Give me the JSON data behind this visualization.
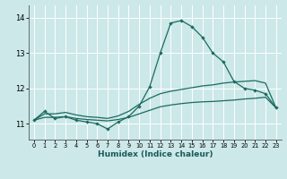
{
  "title": "",
  "xlabel": "Humidex (Indice chaleur)",
  "xlim": [
    -0.5,
    23.5
  ],
  "ylim": [
    10.55,
    14.35
  ],
  "yticks": [
    11,
    12,
    13,
    14
  ],
  "xticks": [
    0,
    1,
    2,
    3,
    4,
    5,
    6,
    7,
    8,
    9,
    10,
    11,
    12,
    13,
    14,
    15,
    16,
    17,
    18,
    19,
    20,
    21,
    22,
    23
  ],
  "bg_color": "#cce8e8",
  "grid_color": "#ffffff",
  "line_color": "#1a6b60",
  "line1_x": [
    0,
    1,
    2,
    3,
    4,
    5,
    6,
    7,
    8,
    9,
    10,
    11,
    12,
    13,
    14,
    15,
    16,
    17,
    18,
    19,
    20,
    21,
    22,
    23
  ],
  "line1_y": [
    11.1,
    11.35,
    11.15,
    11.2,
    11.1,
    11.05,
    11.0,
    10.85,
    11.05,
    11.2,
    11.5,
    12.05,
    13.0,
    13.85,
    13.92,
    13.75,
    13.45,
    13.0,
    12.75,
    12.2,
    12.0,
    11.95,
    11.85,
    11.45
  ],
  "line2_x": [
    0,
    1,
    2,
    3,
    4,
    5,
    6,
    7,
    8,
    9,
    10,
    11,
    12,
    13,
    14,
    15,
    16,
    17,
    18,
    19,
    20,
    21,
    22,
    23
  ],
  "line2_y": [
    11.1,
    11.18,
    11.18,
    11.2,
    11.15,
    11.12,
    11.1,
    11.08,
    11.12,
    11.18,
    11.28,
    11.38,
    11.48,
    11.53,
    11.57,
    11.6,
    11.62,
    11.63,
    11.65,
    11.67,
    11.7,
    11.72,
    11.75,
    11.45
  ],
  "line3_x": [
    0,
    1,
    2,
    3,
    4,
    5,
    6,
    7,
    8,
    9,
    10,
    11,
    12,
    13,
    14,
    15,
    16,
    17,
    18,
    19,
    20,
    21,
    22,
    23
  ],
  "line3_y": [
    11.1,
    11.28,
    11.28,
    11.32,
    11.25,
    11.2,
    11.18,
    11.15,
    11.22,
    11.35,
    11.55,
    11.72,
    11.85,
    11.92,
    11.97,
    12.02,
    12.07,
    12.1,
    12.15,
    12.18,
    12.2,
    12.22,
    12.15,
    11.45
  ]
}
